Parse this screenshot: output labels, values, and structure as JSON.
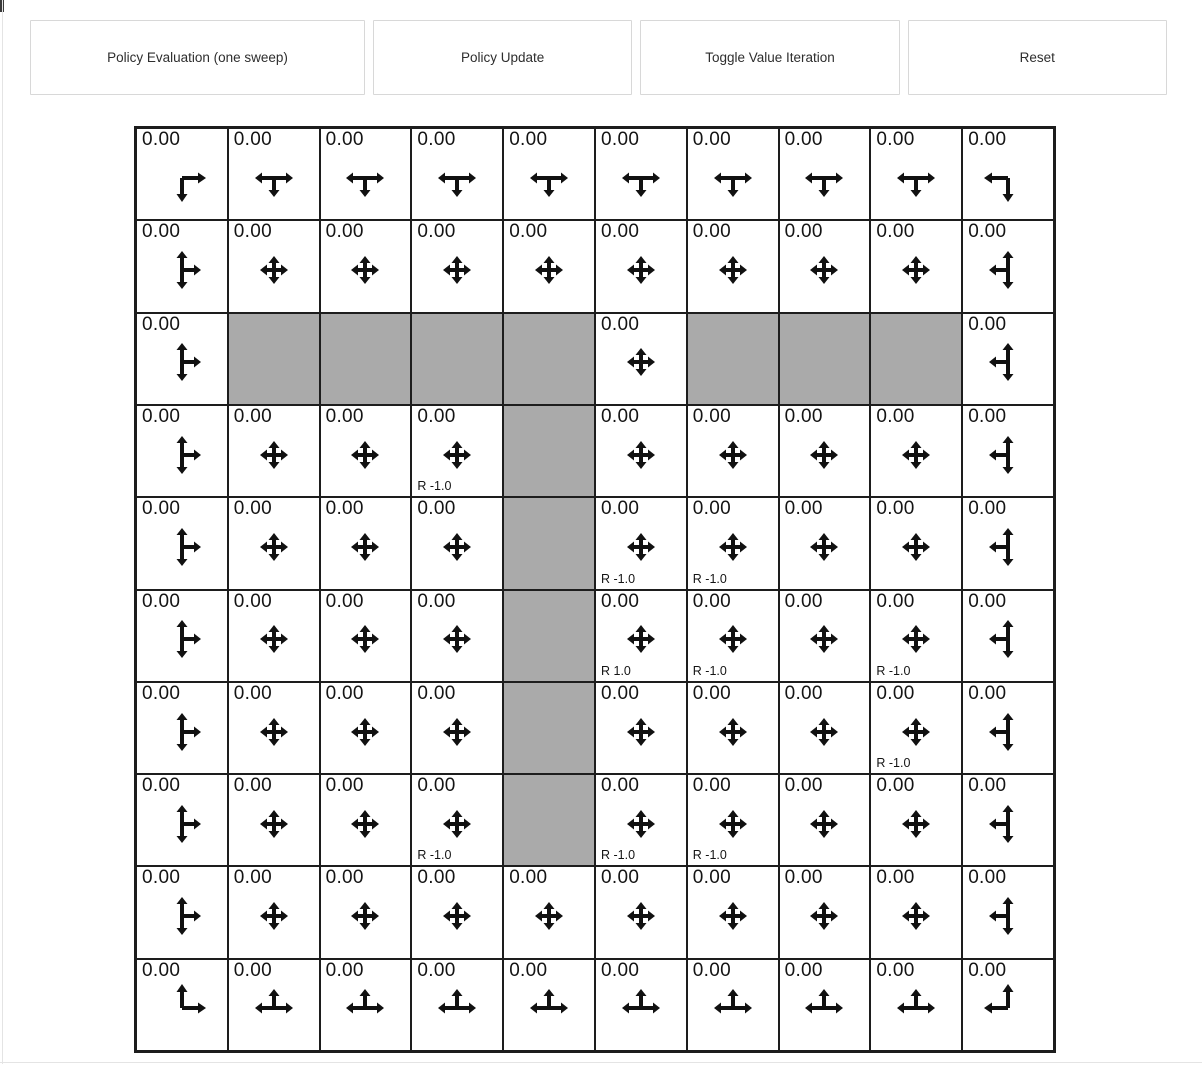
{
  "toolbar": {
    "buttons": [
      {
        "label": "Policy Evaluation (one sweep)"
      },
      {
        "label": "Policy Update"
      },
      {
        "label": "Toggle Value Iteration"
      },
      {
        "label": "Reset"
      }
    ]
  },
  "grid": {
    "rows": 10,
    "cols": 10,
    "wall_color": "#aaaaaa",
    "line_color": "#1d1d1d",
    "arrow_color": "#111111",
    "cells": [
      [
        {
          "type": "state",
          "value": "0.00",
          "arrows": [
            "right",
            "down"
          ]
        },
        {
          "type": "state",
          "value": "0.00",
          "arrows": [
            "left",
            "right",
            "down"
          ]
        },
        {
          "type": "state",
          "value": "0.00",
          "arrows": [
            "left",
            "right",
            "down"
          ]
        },
        {
          "type": "state",
          "value": "0.00",
          "arrows": [
            "left",
            "right",
            "down"
          ]
        },
        {
          "type": "state",
          "value": "0.00",
          "arrows": [
            "left",
            "right",
            "down"
          ]
        },
        {
          "type": "state",
          "value": "0.00",
          "arrows": [
            "left",
            "right",
            "down"
          ]
        },
        {
          "type": "state",
          "value": "0.00",
          "arrows": [
            "left",
            "right",
            "down"
          ]
        },
        {
          "type": "state",
          "value": "0.00",
          "arrows": [
            "left",
            "right",
            "down"
          ]
        },
        {
          "type": "state",
          "value": "0.00",
          "arrows": [
            "left",
            "right",
            "down"
          ]
        },
        {
          "type": "state",
          "value": "0.00",
          "arrows": [
            "left",
            "down"
          ]
        }
      ],
      [
        {
          "type": "state",
          "value": "0.00",
          "arrows": [
            "up",
            "down",
            "right"
          ]
        },
        {
          "type": "state",
          "value": "0.00",
          "arrows": [
            "up",
            "down",
            "left",
            "right"
          ]
        },
        {
          "type": "state",
          "value": "0.00",
          "arrows": [
            "up",
            "down",
            "left",
            "right"
          ]
        },
        {
          "type": "state",
          "value": "0.00",
          "arrows": [
            "up",
            "down",
            "left",
            "right"
          ]
        },
        {
          "type": "state",
          "value": "0.00",
          "arrows": [
            "up",
            "down",
            "left",
            "right"
          ]
        },
        {
          "type": "state",
          "value": "0.00",
          "arrows": [
            "up",
            "down",
            "left",
            "right"
          ]
        },
        {
          "type": "state",
          "value": "0.00",
          "arrows": [
            "up",
            "down",
            "left",
            "right"
          ]
        },
        {
          "type": "state",
          "value": "0.00",
          "arrows": [
            "up",
            "down",
            "left",
            "right"
          ]
        },
        {
          "type": "state",
          "value": "0.00",
          "arrows": [
            "up",
            "down",
            "left",
            "right"
          ]
        },
        {
          "type": "state",
          "value": "0.00",
          "arrows": [
            "up",
            "down",
            "left"
          ]
        }
      ],
      [
        {
          "type": "state",
          "value": "0.00",
          "arrows": [
            "up",
            "down",
            "right"
          ]
        },
        {
          "type": "wall"
        },
        {
          "type": "wall"
        },
        {
          "type": "wall"
        },
        {
          "type": "wall"
        },
        {
          "type": "state",
          "value": "0.00",
          "arrows": [
            "up",
            "down",
            "left",
            "right"
          ]
        },
        {
          "type": "wall"
        },
        {
          "type": "wall"
        },
        {
          "type": "wall"
        },
        {
          "type": "state",
          "value": "0.00",
          "arrows": [
            "up",
            "down",
            "left"
          ]
        }
      ],
      [
        {
          "type": "state",
          "value": "0.00",
          "arrows": [
            "up",
            "down",
            "right"
          ]
        },
        {
          "type": "state",
          "value": "0.00",
          "arrows": [
            "up",
            "down",
            "left",
            "right"
          ]
        },
        {
          "type": "state",
          "value": "0.00",
          "arrows": [
            "up",
            "down",
            "left",
            "right"
          ]
        },
        {
          "type": "state",
          "value": "0.00",
          "arrows": [
            "up",
            "down",
            "left",
            "right"
          ],
          "reward": "R -1.0"
        },
        {
          "type": "wall"
        },
        {
          "type": "state",
          "value": "0.00",
          "arrows": [
            "up",
            "down",
            "left",
            "right"
          ]
        },
        {
          "type": "state",
          "value": "0.00",
          "arrows": [
            "up",
            "down",
            "left",
            "right"
          ]
        },
        {
          "type": "state",
          "value": "0.00",
          "arrows": [
            "up",
            "down",
            "left",
            "right"
          ]
        },
        {
          "type": "state",
          "value": "0.00",
          "arrows": [
            "up",
            "down",
            "left",
            "right"
          ]
        },
        {
          "type": "state",
          "value": "0.00",
          "arrows": [
            "up",
            "down",
            "left"
          ]
        }
      ],
      [
        {
          "type": "state",
          "value": "0.00",
          "arrows": [
            "up",
            "down",
            "right"
          ]
        },
        {
          "type": "state",
          "value": "0.00",
          "arrows": [
            "up",
            "down",
            "left",
            "right"
          ]
        },
        {
          "type": "state",
          "value": "0.00",
          "arrows": [
            "up",
            "down",
            "left",
            "right"
          ]
        },
        {
          "type": "state",
          "value": "0.00",
          "arrows": [
            "up",
            "down",
            "left",
            "right"
          ]
        },
        {
          "type": "wall"
        },
        {
          "type": "state",
          "value": "0.00",
          "arrows": [
            "up",
            "down",
            "left",
            "right"
          ],
          "reward": "R -1.0"
        },
        {
          "type": "state",
          "value": "0.00",
          "arrows": [
            "up",
            "down",
            "left",
            "right"
          ],
          "reward": "R -1.0"
        },
        {
          "type": "state",
          "value": "0.00",
          "arrows": [
            "up",
            "down",
            "left",
            "right"
          ]
        },
        {
          "type": "state",
          "value": "0.00",
          "arrows": [
            "up",
            "down",
            "left",
            "right"
          ]
        },
        {
          "type": "state",
          "value": "0.00",
          "arrows": [
            "up",
            "down",
            "left"
          ]
        }
      ],
      [
        {
          "type": "state",
          "value": "0.00",
          "arrows": [
            "up",
            "down",
            "right"
          ]
        },
        {
          "type": "state",
          "value": "0.00",
          "arrows": [
            "up",
            "down",
            "left",
            "right"
          ]
        },
        {
          "type": "state",
          "value": "0.00",
          "arrows": [
            "up",
            "down",
            "left",
            "right"
          ]
        },
        {
          "type": "state",
          "value": "0.00",
          "arrows": [
            "up",
            "down",
            "left",
            "right"
          ]
        },
        {
          "type": "wall"
        },
        {
          "type": "state",
          "value": "0.00",
          "arrows": [
            "up",
            "down",
            "left",
            "right"
          ],
          "reward": "R 1.0"
        },
        {
          "type": "state",
          "value": "0.00",
          "arrows": [
            "up",
            "down",
            "left",
            "right"
          ],
          "reward": "R -1.0"
        },
        {
          "type": "state",
          "value": "0.00",
          "arrows": [
            "up",
            "down",
            "left",
            "right"
          ]
        },
        {
          "type": "state",
          "value": "0.00",
          "arrows": [
            "up",
            "down",
            "left",
            "right"
          ],
          "reward": "R -1.0"
        },
        {
          "type": "state",
          "value": "0.00",
          "arrows": [
            "up",
            "down",
            "left"
          ]
        }
      ],
      [
        {
          "type": "state",
          "value": "0.00",
          "arrows": [
            "up",
            "down",
            "right"
          ]
        },
        {
          "type": "state",
          "value": "0.00",
          "arrows": [
            "up",
            "down",
            "left",
            "right"
          ]
        },
        {
          "type": "state",
          "value": "0.00",
          "arrows": [
            "up",
            "down",
            "left",
            "right"
          ]
        },
        {
          "type": "state",
          "value": "0.00",
          "arrows": [
            "up",
            "down",
            "left",
            "right"
          ]
        },
        {
          "type": "wall"
        },
        {
          "type": "state",
          "value": "0.00",
          "arrows": [
            "up",
            "down",
            "left",
            "right"
          ]
        },
        {
          "type": "state",
          "value": "0.00",
          "arrows": [
            "up",
            "down",
            "left",
            "right"
          ]
        },
        {
          "type": "state",
          "value": "0.00",
          "arrows": [
            "up",
            "down",
            "left",
            "right"
          ]
        },
        {
          "type": "state",
          "value": "0.00",
          "arrows": [
            "up",
            "down",
            "left",
            "right"
          ],
          "reward": "R -1.0"
        },
        {
          "type": "state",
          "value": "0.00",
          "arrows": [
            "up",
            "down",
            "left"
          ]
        }
      ],
      [
        {
          "type": "state",
          "value": "0.00",
          "arrows": [
            "up",
            "down",
            "right"
          ]
        },
        {
          "type": "state",
          "value": "0.00",
          "arrows": [
            "up",
            "down",
            "left",
            "right"
          ]
        },
        {
          "type": "state",
          "value": "0.00",
          "arrows": [
            "up",
            "down",
            "left",
            "right"
          ]
        },
        {
          "type": "state",
          "value": "0.00",
          "arrows": [
            "up",
            "down",
            "left",
            "right"
          ],
          "reward": "R -1.0"
        },
        {
          "type": "wall"
        },
        {
          "type": "state",
          "value": "0.00",
          "arrows": [
            "up",
            "down",
            "left",
            "right"
          ],
          "reward": "R -1.0"
        },
        {
          "type": "state",
          "value": "0.00",
          "arrows": [
            "up",
            "down",
            "left",
            "right"
          ],
          "reward": "R -1.0"
        },
        {
          "type": "state",
          "value": "0.00",
          "arrows": [
            "up",
            "down",
            "left",
            "right"
          ]
        },
        {
          "type": "state",
          "value": "0.00",
          "arrows": [
            "up",
            "down",
            "left",
            "right"
          ]
        },
        {
          "type": "state",
          "value": "0.00",
          "arrows": [
            "up",
            "down",
            "left"
          ]
        }
      ],
      [
        {
          "type": "state",
          "value": "0.00",
          "arrows": [
            "up",
            "down",
            "right"
          ]
        },
        {
          "type": "state",
          "value": "0.00",
          "arrows": [
            "up",
            "down",
            "left",
            "right"
          ]
        },
        {
          "type": "state",
          "value": "0.00",
          "arrows": [
            "up",
            "down",
            "left",
            "right"
          ]
        },
        {
          "type": "state",
          "value": "0.00",
          "arrows": [
            "up",
            "down",
            "left",
            "right"
          ]
        },
        {
          "type": "state",
          "value": "0.00",
          "arrows": [
            "up",
            "down",
            "left",
            "right"
          ]
        },
        {
          "type": "state",
          "value": "0.00",
          "arrows": [
            "up",
            "down",
            "left",
            "right"
          ]
        },
        {
          "type": "state",
          "value": "0.00",
          "arrows": [
            "up",
            "down",
            "left",
            "right"
          ]
        },
        {
          "type": "state",
          "value": "0.00",
          "arrows": [
            "up",
            "down",
            "left",
            "right"
          ]
        },
        {
          "type": "state",
          "value": "0.00",
          "arrows": [
            "up",
            "down",
            "left",
            "right"
          ]
        },
        {
          "type": "state",
          "value": "0.00",
          "arrows": [
            "up",
            "down",
            "left"
          ]
        }
      ],
      [
        {
          "type": "state",
          "value": "0.00",
          "arrows": [
            "up",
            "right"
          ]
        },
        {
          "type": "state",
          "value": "0.00",
          "arrows": [
            "up",
            "left",
            "right"
          ]
        },
        {
          "type": "state",
          "value": "0.00",
          "arrows": [
            "up",
            "left",
            "right"
          ]
        },
        {
          "type": "state",
          "value": "0.00",
          "arrows": [
            "up",
            "left",
            "right"
          ]
        },
        {
          "type": "state",
          "value": "0.00",
          "arrows": [
            "up",
            "left",
            "right"
          ]
        },
        {
          "type": "state",
          "value": "0.00",
          "arrows": [
            "up",
            "left",
            "right"
          ]
        },
        {
          "type": "state",
          "value": "0.00",
          "arrows": [
            "up",
            "left",
            "right"
          ]
        },
        {
          "type": "state",
          "value": "0.00",
          "arrows": [
            "up",
            "left",
            "right"
          ]
        },
        {
          "type": "state",
          "value": "0.00",
          "arrows": [
            "up",
            "left",
            "right"
          ]
        },
        {
          "type": "state",
          "value": "0.00",
          "arrows": [
            "up",
            "left"
          ]
        }
      ]
    ]
  }
}
